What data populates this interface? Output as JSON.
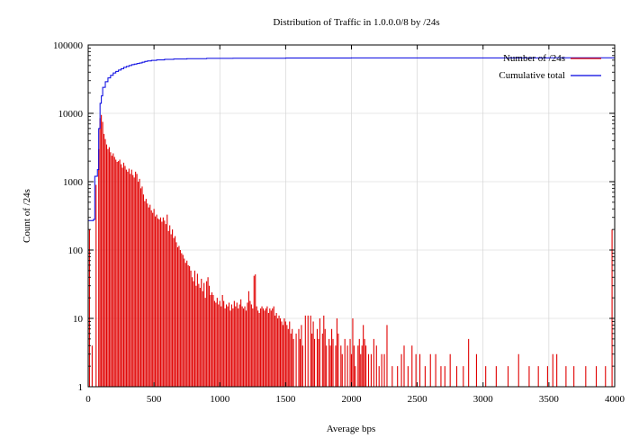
{
  "chart_data": {
    "type": "bar",
    "title": "Distribution of Traffic in 1.0.0.0/8 by /24s",
    "xlabel": "Average bps",
    "ylabel": "Count of /24s",
    "xlim": [
      0,
      4000
    ],
    "ylim": [
      1,
      100000
    ],
    "yscale": "log",
    "grid": true,
    "legend_position": "top-right",
    "x_ticks": [
      "0",
      "500",
      "1000",
      "1500",
      "2000",
      "2500",
      "3000",
      "3500",
      "4000"
    ],
    "y_ticks": [
      "1",
      "10",
      "100",
      "1000",
      "10000",
      "100000"
    ],
    "series": [
      {
        "name": "Number of /24s",
        "kind": "impulses",
        "color": "#e00000",
        "points": [
          [
            10,
            200
          ],
          [
            30,
            4
          ],
          [
            60,
            900
          ],
          [
            80,
            3000
          ],
          [
            90,
            8500
          ],
          [
            100,
            9500
          ],
          [
            110,
            7500
          ],
          [
            120,
            5000
          ],
          [
            130,
            4200
          ],
          [
            140,
            3500
          ],
          [
            150,
            3000
          ],
          [
            160,
            3200
          ],
          [
            170,
            2700
          ],
          [
            180,
            2400
          ],
          [
            190,
            2600
          ],
          [
            200,
            2300
          ],
          [
            210,
            2100
          ],
          [
            220,
            1950
          ],
          [
            230,
            2000
          ],
          [
            240,
            2100
          ],
          [
            250,
            1800
          ],
          [
            260,
            1600
          ],
          [
            270,
            1900
          ],
          [
            280,
            1700
          ],
          [
            290,
            1500
          ],
          [
            300,
            1400
          ],
          [
            310,
            1550
          ],
          [
            320,
            1300
          ],
          [
            330,
            1500
          ],
          [
            340,
            1250
          ],
          [
            350,
            1150
          ],
          [
            360,
            1400
          ],
          [
            370,
            1300
          ],
          [
            380,
            1000
          ],
          [
            390,
            1100
          ],
          [
            400,
            800
          ],
          [
            410,
            850
          ],
          [
            420,
            650
          ],
          [
            430,
            520
          ],
          [
            440,
            560
          ],
          [
            450,
            480
          ],
          [
            460,
            420
          ],
          [
            470,
            460
          ],
          [
            480,
            380
          ],
          [
            490,
            350
          ],
          [
            500,
            400
          ],
          [
            510,
            310
          ],
          [
            520,
            330
          ],
          [
            530,
            290
          ],
          [
            540,
            280
          ],
          [
            550,
            300
          ],
          [
            560,
            260
          ],
          [
            570,
            300
          ],
          [
            580,
            270
          ],
          [
            590,
            240
          ],
          [
            600,
            330
          ],
          [
            610,
            190
          ],
          [
            620,
            230
          ],
          [
            630,
            170
          ],
          [
            640,
            200
          ],
          [
            650,
            150
          ],
          [
            660,
            160
          ],
          [
            670,
            130
          ],
          [
            680,
            110
          ],
          [
            690,
            115
          ],
          [
            700,
            100
          ],
          [
            710,
            90
          ],
          [
            720,
            85
          ],
          [
            730,
            75
          ],
          [
            740,
            65
          ],
          [
            750,
            70
          ],
          [
            760,
            60
          ],
          [
            770,
            58
          ],
          [
            780,
            50
          ],
          [
            790,
            40
          ],
          [
            800,
            35
          ],
          [
            810,
            50
          ],
          [
            820,
            30
          ],
          [
            830,
            45
          ],
          [
            840,
            32
          ],
          [
            850,
            28
          ],
          [
            860,
            38
          ],
          [
            870,
            25
          ],
          [
            880,
            33
          ],
          [
            890,
            20
          ],
          [
            900,
            35
          ],
          [
            910,
            40
          ],
          [
            920,
            30
          ],
          [
            930,
            22
          ],
          [
            940,
            24
          ],
          [
            950,
            22
          ],
          [
            960,
            18
          ],
          [
            970,
            17
          ],
          [
            980,
            20
          ],
          [
            990,
            16
          ],
          [
            1000,
            18
          ],
          [
            1010,
            15
          ],
          [
            1020,
            22
          ],
          [
            1030,
            18
          ],
          [
            1040,
            14
          ],
          [
            1050,
            16
          ],
          [
            1060,
            15
          ],
          [
            1070,
            17
          ],
          [
            1080,
            13
          ],
          [
            1090,
            16
          ],
          [
            1100,
            14
          ],
          [
            1110,
            18
          ],
          [
            1120,
            15
          ],
          [
            1130,
            17
          ],
          [
            1140,
            14
          ],
          [
            1150,
            16
          ],
          [
            1160,
            19
          ],
          [
            1170,
            15
          ],
          [
            1180,
            14
          ],
          [
            1190,
            15
          ],
          [
            1200,
            13
          ],
          [
            1210,
            17
          ],
          [
            1220,
            25
          ],
          [
            1230,
            18
          ],
          [
            1240,
            16
          ],
          [
            1250,
            14
          ],
          [
            1260,
            42
          ],
          [
            1270,
            44
          ],
          [
            1280,
            15
          ],
          [
            1290,
            13
          ],
          [
            1300,
            12
          ],
          [
            1310,
            14
          ],
          [
            1320,
            15
          ],
          [
            1330,
            14
          ],
          [
            1340,
            13
          ],
          [
            1350,
            14
          ],
          [
            1360,
            15
          ],
          [
            1370,
            12
          ],
          [
            1380,
            14
          ],
          [
            1390,
            13
          ],
          [
            1400,
            14
          ],
          [
            1410,
            15
          ],
          [
            1420,
            11
          ],
          [
            1430,
            12
          ],
          [
            1440,
            10
          ],
          [
            1450,
            11
          ],
          [
            1460,
            10
          ],
          [
            1470,
            9
          ],
          [
            1480,
            8
          ],
          [
            1490,
            10
          ],
          [
            1500,
            9
          ],
          [
            1510,
            8
          ],
          [
            1520,
            7
          ],
          [
            1530,
            9
          ],
          [
            1540,
            6
          ],
          [
            1550,
            7
          ],
          [
            1560,
            5
          ],
          [
            1580,
            6
          ],
          [
            1600,
            7
          ],
          [
            1610,
            5
          ],
          [
            1620,
            8
          ],
          [
            1630,
            4
          ],
          [
            1650,
            11
          ],
          [
            1670,
            11
          ],
          [
            1690,
            11
          ],
          [
            1700,
            6
          ],
          [
            1710,
            9
          ],
          [
            1720,
            5
          ],
          [
            1740,
            7
          ],
          [
            1750,
            5
          ],
          [
            1760,
            10
          ],
          [
            1780,
            6
          ],
          [
            1790,
            11
          ],
          [
            1800,
            7
          ],
          [
            1810,
            4
          ],
          [
            1830,
            5
          ],
          [
            1840,
            4
          ],
          [
            1850,
            7
          ],
          [
            1860,
            5
          ],
          [
            1880,
            4
          ],
          [
            1890,
            10
          ],
          [
            1900,
            6
          ],
          [
            1920,
            4
          ],
          [
            1930,
            3
          ],
          [
            1950,
            5
          ],
          [
            1970,
            4
          ],
          [
            1990,
            5
          ],
          [
            2000,
            3
          ],
          [
            2010,
            10
          ],
          [
            2020,
            4
          ],
          [
            2030,
            2
          ],
          [
            2050,
            4
          ],
          [
            2060,
            5
          ],
          [
            2070,
            3
          ],
          [
            2080,
            4
          ],
          [
            2090,
            8
          ],
          [
            2100,
            5
          ],
          [
            2110,
            4
          ],
          [
            2130,
            3
          ],
          [
            2150,
            3
          ],
          [
            2170,
            5
          ],
          [
            2190,
            4
          ],
          [
            2210,
            2
          ],
          [
            2230,
            3
          ],
          [
            2250,
            3
          ],
          [
            2270,
            8
          ],
          [
            2310,
            2
          ],
          [
            2350,
            2
          ],
          [
            2380,
            3
          ],
          [
            2400,
            4
          ],
          [
            2430,
            2
          ],
          [
            2460,
            4
          ],
          [
            2490,
            3
          ],
          [
            2520,
            3
          ],
          [
            2560,
            2
          ],
          [
            2600,
            3
          ],
          [
            2640,
            3
          ],
          [
            2680,
            2
          ],
          [
            2710,
            2
          ],
          [
            2750,
            3
          ],
          [
            2800,
            2
          ],
          [
            2850,
            2
          ],
          [
            2890,
            5
          ],
          [
            2950,
            3
          ],
          [
            3020,
            2
          ],
          [
            3100,
            2
          ],
          [
            3190,
            2
          ],
          [
            3270,
            3
          ],
          [
            3350,
            2
          ],
          [
            3420,
            2
          ],
          [
            3490,
            2
          ],
          [
            3530,
            3
          ],
          [
            3560,
            3
          ],
          [
            3630,
            2
          ],
          [
            3690,
            2
          ],
          [
            3780,
            2
          ],
          [
            3860,
            2
          ],
          [
            3930,
            2
          ],
          [
            3980,
            200
          ]
        ]
      },
      {
        "name": "Cumulative total",
        "kind": "steps",
        "color": "#0000e0",
        "points": [
          [
            0,
            270
          ],
          [
            40,
            280
          ],
          [
            50,
            1200
          ],
          [
            70,
            1500
          ],
          [
            80,
            6000
          ],
          [
            90,
            14000
          ],
          [
            100,
            18000
          ],
          [
            110,
            24000
          ],
          [
            130,
            29000
          ],
          [
            150,
            33000
          ],
          [
            170,
            36000
          ],
          [
            190,
            39000
          ],
          [
            210,
            41000
          ],
          [
            230,
            43000
          ],
          [
            250,
            45000
          ],
          [
            270,
            47000
          ],
          [
            290,
            48500
          ],
          [
            310,
            50000
          ],
          [
            330,
            51500
          ],
          [
            350,
            52500
          ],
          [
            370,
            53500
          ],
          [
            390,
            54500
          ],
          [
            410,
            56000
          ],
          [
            430,
            57500
          ],
          [
            450,
            58500
          ],
          [
            480,
            59500
          ],
          [
            520,
            60500
          ],
          [
            580,
            61500
          ],
          [
            650,
            62300
          ],
          [
            750,
            63000
          ],
          [
            900,
            63600
          ],
          [
            1100,
            64000
          ],
          [
            1500,
            64400
          ],
          [
            2000,
            64600
          ],
          [
            2500,
            64700
          ],
          [
            3000,
            64800
          ],
          [
            3500,
            64850
          ],
          [
            4000,
            64900
          ]
        ]
      }
    ]
  }
}
